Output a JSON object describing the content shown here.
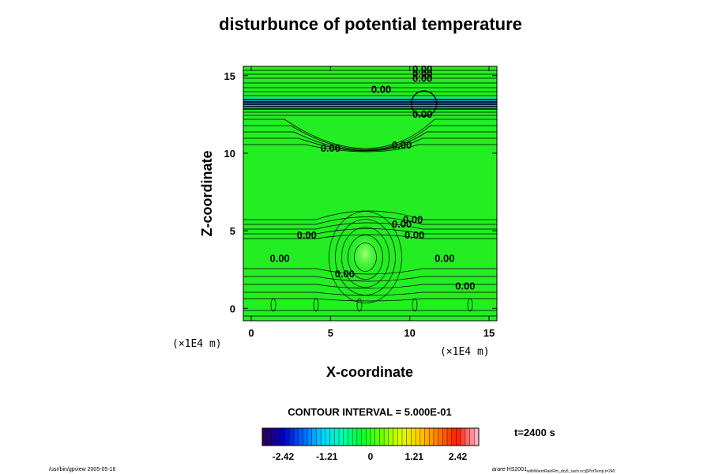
{
  "chart_data": {
    "type": "heatmap",
    "title": "disturbunce of potential temperature",
    "xlabel": "X-coordinate",
    "ylabel": "Z-coordinate",
    "x_unit": "(×1E4 m)",
    "z_unit": "(×1E4 m)",
    "xlim": [
      -0.5,
      15.5
    ],
    "ylim": [
      -0.8,
      15.6
    ],
    "x_ticks": [
      0,
      5,
      10,
      15
    ],
    "y_ticks": [
      0,
      5,
      10,
      15
    ],
    "tick_labels_x": [
      "0",
      "5",
      "10",
      "15"
    ],
    "tick_labels_y": [
      "0",
      "5",
      "10",
      "15"
    ],
    "background_value": 0,
    "features": [
      {
        "name": "upper-layer-negative-band",
        "z_range": [
          12.8,
          13.7
        ],
        "x_range": [
          -0.5,
          15.5
        ],
        "value": -1.2
      },
      {
        "name": "warm-bubble",
        "x_center": 7.2,
        "z_center": 3.5,
        "value": 0.6
      }
    ],
    "contour_labels": [
      {
        "text": "0.00",
        "x": 10.8,
        "z": 15.2
      },
      {
        "text": "0.00",
        "x": 10.8,
        "z": 14.9
      },
      {
        "text": "0.00",
        "x": 10.8,
        "z": 14.6
      },
      {
        "text": "0.00",
        "x": 8.2,
        "z": 13.9
      },
      {
        "text": "0.00",
        "x": 10.8,
        "z": 12.3
      },
      {
        "text": "0.00",
        "x": 5.0,
        "z": 10.1
      },
      {
        "text": "0.00",
        "x": 9.5,
        "z": 10.3
      },
      {
        "text": "0.00",
        "x": 10.2,
        "z": 5.5
      },
      {
        "text": "0.00",
        "x": 9.5,
        "z": 5.2
      },
      {
        "text": "0.00",
        "x": 3.5,
        "z": 4.5
      },
      {
        "text": "0.00",
        "x": 10.3,
        "z": 4.5
      },
      {
        "text": "0.00",
        "x": 1.8,
        "z": 3.0
      },
      {
        "text": "0.00",
        "x": 12.2,
        "z": 3.0
      },
      {
        "text": "0.00",
        "x": 5.9,
        "z": 2.0
      },
      {
        "text": "0.00",
        "x": 13.5,
        "z": 1.2
      }
    ],
    "contour_interval_label": "CONTOUR INTERVAL = 5.000E-01",
    "colorbar": {
      "min": -3.0,
      "max": 3.0,
      "ticks": [
        -2.42,
        -1.21,
        0,
        1.21,
        2.42
      ],
      "tick_labels": [
        "-2.42",
        "-1.21",
        "0",
        "1.21",
        "2.42"
      ],
      "colors": [
        "#2a005f",
        "#0000cc",
        "#0066ff",
        "#00d4ff",
        "#00ffb0",
        "#00ff33",
        "#66ff00",
        "#d6ff00",
        "#ffd000",
        "#ff7a00",
        "#ff1a00",
        "#ffb0c0"
      ]
    },
    "time_label": "t=2400 s"
  },
  "footer": {
    "left": "/usr/bin/gpview 2005-05-16",
    "right_main": "arare-HS2001",
    "right_small": "withWarmRainRm_dry5_sach.nc@PotTemp,t=240"
  },
  "colors": {
    "field": "#22ee22",
    "bubble": "#7dff5a",
    "negative_band": "#2a6fcc",
    "contour": "#000000"
  }
}
